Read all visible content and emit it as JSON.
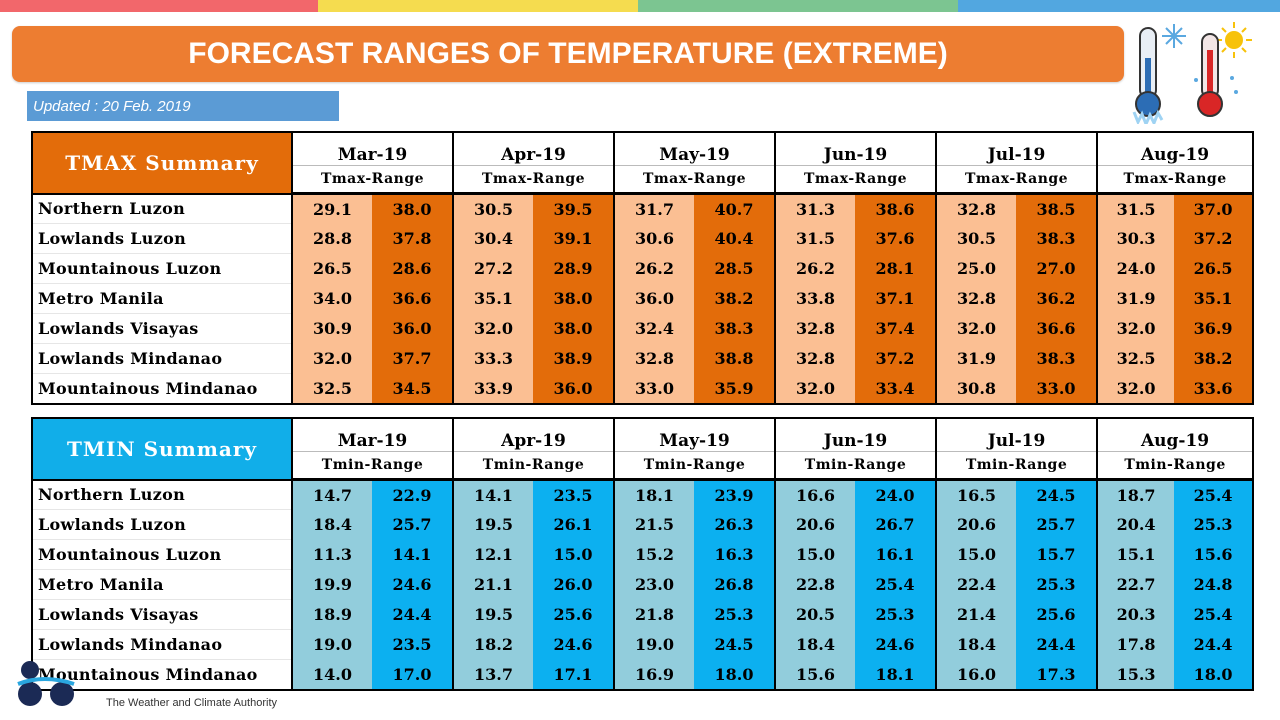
{
  "title": "FORECAST RANGES OF TEMPERATURE (EXTREME)",
  "updated": "Updated : 20 Feb. 2019",
  "footer_tagline": "The Weather and Climate Authority",
  "colors": {
    "stripe_red": "#f2676b",
    "stripe_yellow": "#f5dc4f",
    "stripe_green": "#7cc591",
    "stripe_blue": "#52a7e0",
    "title_bg": "#ed7d31",
    "updated_bg": "#5b9bd5",
    "tmax_header": "#e36c0a",
    "tmax_low": "#fbbf93",
    "tmax_high": "#e36c0a",
    "tmin_header": "#11aee9",
    "tmin_low": "#92cddc",
    "tmin_high": "#0cb0f0"
  },
  "icons": [
    "cold-thermometer-icon",
    "hot-thermometer-icon"
  ],
  "tmax": {
    "label": "TMAX Summary",
    "months": [
      "Mar-19",
      "Apr-19",
      "May-19",
      "Jun-19",
      "Jul-19",
      "Aug-19"
    ],
    "sublabel": "Tmax-Range",
    "rows": [
      {
        "region": "Northern Luzon",
        "values": [
          "29.1",
          "38.0",
          "30.5",
          "39.5",
          "31.7",
          "40.7",
          "31.3",
          "38.6",
          "32.8",
          "38.5",
          "31.5",
          "37.0"
        ]
      },
      {
        "region": "Lowlands Luzon",
        "values": [
          "28.8",
          "37.8",
          "30.4",
          "39.1",
          "30.6",
          "40.4",
          "31.5",
          "37.6",
          "30.5",
          "38.3",
          "30.3",
          "37.2"
        ]
      },
      {
        "region": "Mountainous Luzon",
        "values": [
          "26.5",
          "28.6",
          "27.2",
          "28.9",
          "26.2",
          "28.5",
          "26.2",
          "28.1",
          "25.0",
          "27.0",
          "24.0",
          "26.5"
        ]
      },
      {
        "region": "Metro Manila",
        "values": [
          "34.0",
          "36.6",
          "35.1",
          "38.0",
          "36.0",
          "38.2",
          "33.8",
          "37.1",
          "32.8",
          "36.2",
          "31.9",
          "35.1"
        ]
      },
      {
        "region": "Lowlands Visayas",
        "values": [
          "30.9",
          "36.0",
          "32.0",
          "38.0",
          "32.4",
          "38.3",
          "32.8",
          "37.4",
          "32.0",
          "36.6",
          "32.0",
          "36.9"
        ]
      },
      {
        "region": "Lowlands Mindanao",
        "values": [
          "32.0",
          "37.7",
          "33.3",
          "38.9",
          "32.8",
          "38.8",
          "32.8",
          "37.2",
          "31.9",
          "38.3",
          "32.5",
          "38.2"
        ]
      },
      {
        "region": "Mountainous Mindanao",
        "values": [
          "32.5",
          "34.5",
          "33.9",
          "36.0",
          "33.0",
          "35.9",
          "32.0",
          "33.4",
          "30.8",
          "33.0",
          "32.0",
          "33.6"
        ]
      }
    ]
  },
  "tmin": {
    "label": "TMIN Summary",
    "months": [
      "Mar-19",
      "Apr-19",
      "May-19",
      "Jun-19",
      "Jul-19",
      "Aug-19"
    ],
    "sublabel": "Tmin-Range",
    "rows": [
      {
        "region": "Northern Luzon",
        "values": [
          "14.7",
          "22.9",
          "14.1",
          "23.5",
          "18.1",
          "23.9",
          "16.6",
          "24.0",
          "16.5",
          "24.5",
          "18.7",
          "25.4"
        ]
      },
      {
        "region": "Lowlands Luzon",
        "values": [
          "18.4",
          "25.7",
          "19.5",
          "26.1",
          "21.5",
          "26.3",
          "20.6",
          "26.7",
          "20.6",
          "25.7",
          "20.4",
          "25.3"
        ]
      },
      {
        "region": "Mountainous Luzon",
        "values": [
          "11.3",
          "14.1",
          "12.1",
          "15.0",
          "15.2",
          "16.3",
          "15.0",
          "16.1",
          "15.0",
          "15.7",
          "15.1",
          "15.6"
        ]
      },
      {
        "region": "Metro Manila",
        "values": [
          "19.9",
          "24.6",
          "21.1",
          "26.0",
          "23.0",
          "26.8",
          "22.8",
          "25.4",
          "22.4",
          "25.3",
          "22.7",
          "24.8"
        ]
      },
      {
        "region": "Lowlands Visayas",
        "values": [
          "18.9",
          "24.4",
          "19.5",
          "25.6",
          "21.8",
          "25.3",
          "20.5",
          "25.3",
          "21.4",
          "25.6",
          "20.3",
          "25.4"
        ]
      },
      {
        "region": "Lowlands Mindanao",
        "values": [
          "19.0",
          "23.5",
          "18.2",
          "24.6",
          "19.0",
          "24.5",
          "18.4",
          "24.6",
          "18.4",
          "24.4",
          "17.8",
          "24.4"
        ]
      },
      {
        "region": "Mountainous Mindanao",
        "values": [
          "14.0",
          "17.0",
          "13.7",
          "17.1",
          "16.9",
          "18.0",
          "15.6",
          "18.1",
          "16.0",
          "17.3",
          "15.3",
          "18.0"
        ]
      }
    ]
  }
}
